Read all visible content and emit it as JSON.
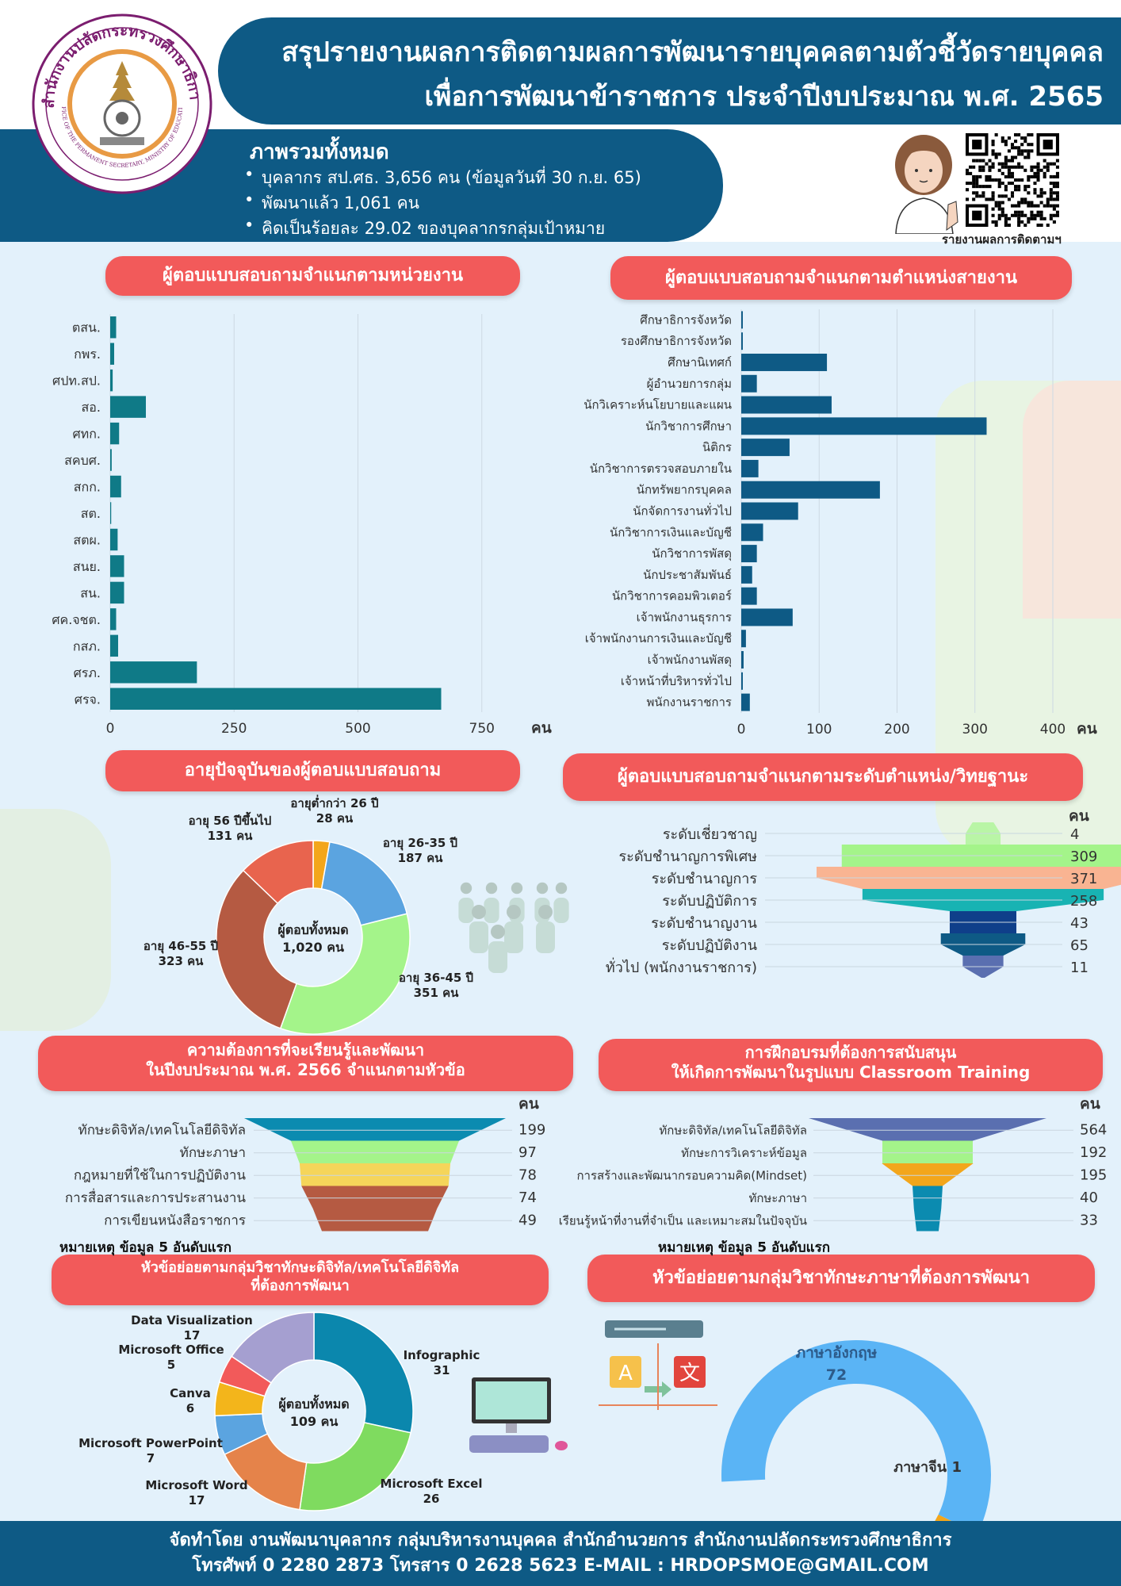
{
  "header": {
    "title_line1": "สรุปรายงานผลการติดตามผลการพัฒนารายบุคคลตามตัวชี้วัดรายบุคคล",
    "title_line2": "เพื่อการพัฒนาข้าราชการ ประจำปีงบประมาณ พ.ศ. 2565",
    "logo_text": "สำนักงานปลัดกระทรวงศึกษาธิการ",
    "logo_text_en": "OFFICE OF THE PERMANENT SECRETARY, MINISTRY OF EDUCATION",
    "qr_caption": "รายงานผลการติดตามฯ"
  },
  "overview": {
    "title": "ภาพรวมทั้งหมด",
    "bullets": [
      "บุคลากร สป.ศธ. 3,656 คน (ข้อมูลวันที่ 30 ก.ย. 65)",
      "พัฒนาแล้ว 1,061 คน",
      "คิดเป็นร้อยละ 29.02 ของบุคลากรกลุ่มเป้าหมาย"
    ]
  },
  "sections": {
    "by_unit": "ผู้ตอบแบบสอบถามจำแนกตามหน่วยงาน",
    "by_position": "ผู้ตอบแบบสอบถามจำแนกตามตำแหน่งสายงาน",
    "by_age": "อายุปัจจุบันของผู้ตอบแบบสอบถาม",
    "by_level": "ผู้ตอบแบบสอบถามจำแนกตามระดับตำแหน่ง/วิทยฐานะ",
    "learning_need_l1": "ความต้องการที่จะเรียนรู้และพัฒนา",
    "learning_need_l2": "ในปีงบประมาณ พ.ศ. 2566 จำแนกตามหัวข้อ",
    "classroom_l1": "การฝึกอบรมที่ต้องการสนับสนุน",
    "classroom_l2": "ให้เกิดการพัฒนาในรูปแบบ Classroom Training",
    "digital_l1": "หัวข้อย่อยตามกลุ่มวิชาทักษะดิจิทัล/เทคโนโลยีดิจิทัล",
    "digital_l2": "ที่ต้องการพัฒนา",
    "language": "หัวข้อย่อยตามกลุ่มวิชาทักษะภาษาที่ต้องการพัฒนา"
  },
  "chart_data": [
    {
      "id": "by_unit",
      "type": "bar",
      "orientation": "horizontal",
      "categories": [
        "ตสน.",
        "กพร.",
        "ศปท.สป.",
        "สอ.",
        "ศทก.",
        "สคบศ.",
        "สกก.",
        "สต.",
        "สตผ.",
        "สนย.",
        "สน.",
        "ศค.จชต.",
        "กสภ.",
        "ศรภ.",
        "ศรจ."
      ],
      "values": [
        12,
        8,
        5,
        72,
        18,
        3,
        22,
        2,
        15,
        28,
        28,
        12,
        16,
        175,
        668
      ],
      "xlim": [
        0,
        800
      ],
      "xticks": [
        0,
        250,
        500,
        750
      ],
      "unit": "คน",
      "color": "#0f7a87"
    },
    {
      "id": "by_position",
      "type": "bar",
      "orientation": "horizontal",
      "categories": [
        "ศึกษาธิการจังหวัด",
        "รองศึกษาธิการจังหวัด",
        "ศึกษานิเทศก์",
        "ผู้อำนวยการกลุ่ม",
        "นักวิเคราะห์นโยบายและแผน",
        "นักวิชาการศึกษา",
        "นิติกร",
        "นักวิชาการตรวจสอบภายใน",
        "นักทรัพยากรบุคคล",
        "นักจัดการงานทั่วไป",
        "นักวิชาการเงินและบัญชี",
        "นักวิชาการพัสดุ",
        "นักประชาสัมพันธ์",
        "นักวิชาการคอมพิวเตอร์",
        "เจ้าพนักงานธุรการ",
        "เจ้าพนักงานการเงินและบัญชี",
        "เจ้าพนักงานพัสดุ",
        "เจ้าหน้าที่บริหารทั่วไป",
        "พนักงานราชการ"
      ],
      "values": [
        2,
        2,
        110,
        20,
        116,
        315,
        62,
        22,
        178,
        73,
        28,
        20,
        14,
        20,
        66,
        6,
        3,
        2,
        11
      ],
      "xlim": [
        0,
        420
      ],
      "xticks": [
        0,
        100,
        200,
        300,
        400
      ],
      "unit": "คน",
      "color": "#0e5a85"
    },
    {
      "id": "by_age",
      "type": "pie",
      "donut": true,
      "center_label": "ผู้ตอบทั้งหมด",
      "center_value": "1,020 คน",
      "slices": [
        {
          "label": "อายุต่ำกว่า 26 ปี",
          "value_text": "28 คน",
          "value": 28,
          "color": "#f3a61b"
        },
        {
          "label": "อายุ 26-35 ปี",
          "value_text": "187 คน",
          "value": 187,
          "color": "#5ba4e0"
        },
        {
          "label": "อายุ 36-45 ปี",
          "value_text": "351 คน",
          "value": 351,
          "color": "#a4f48a"
        },
        {
          "label": "อายุ 46-55 ปี",
          "value_text": "323 คน",
          "value": 323,
          "color": "#b55a42"
        },
        {
          "label": "อายุ 56 ปีขึ้นไป",
          "value_text": "131 คน",
          "value": 131,
          "color": "#e8644e"
        }
      ]
    },
    {
      "id": "by_level",
      "type": "funnel",
      "unit": "คน",
      "categories": [
        "ระดับเชี่ยวชาญ",
        "ระดับชำนาญการพิเศษ",
        "ระดับชำนาญการ",
        "ระดับปฏิบัติการ",
        "ระดับชำนาญงาน",
        "ระดับปฏิบัติงาน",
        "ทั่วไป (พนักงานราชการ)"
      ],
      "values": [
        4,
        309,
        371,
        258,
        43,
        65,
        11
      ],
      "value_labels": [
        "4",
        "309",
        "371",
        "258",
        "43",
        "65",
        "11"
      ],
      "colors": [
        "#b9f5a6",
        "#a4f48a",
        "#f9b492",
        "#18b3b3",
        "#0f3f8a",
        "#0e5a85",
        "#5a6fb0"
      ]
    },
    {
      "id": "learning_need",
      "type": "funnel",
      "unit": "คน",
      "categories": [
        "ทักษะดิจิทัล/เทคโนโลยีดิจิทัล",
        "ทักษะภาษา",
        "กฎหมายที่ใช้ในการปฏิบัติงาน",
        "การสื่อสารและการประสานงาน",
        "การเขียนหนังสือราชการ"
      ],
      "values": [
        199,
        97,
        78,
        74,
        49
      ],
      "value_labels": [
        "199",
        "97",
        "78",
        "74",
        "49"
      ],
      "colors": [
        "#0b8bb0",
        "#a4f48a",
        "#f5d55a",
        "#b55a42",
        "#b55a42"
      ],
      "note": "หมายเหตุ  ข้อมูล 5 อันดับแรก"
    },
    {
      "id": "classroom",
      "type": "funnel",
      "unit": "คน",
      "categories": [
        "ทักษะดิจิทัล/เทคโนโลยีดิจิทัล",
        "ทักษะการวิเคราะห์ข้อมูล",
        "การสร้างและพัฒนากรอบความคิด(Mindset)",
        "ทักษะภาษา",
        "เรียนรู้หน้าที่งานที่จำเป็น และเหมาะสมในปัจจุบัน"
      ],
      "values": [
        564,
        192,
        195,
        40,
        33
      ],
      "value_labels": [
        "564",
        "192",
        "195",
        "40",
        "33"
      ],
      "colors": [
        "#5a6fb0",
        "#a4f48a",
        "#f3a61b",
        "#0b8bb0",
        "#0b8bb0"
      ],
      "note": "หมายเหตุ  ข้อมูล 5 อันดับแรก"
    },
    {
      "id": "digital",
      "type": "pie",
      "donut": true,
      "center_label": "ผู้ตอบทั้งหมด",
      "center_value": "109 คน",
      "slices": [
        {
          "label": "Infographic",
          "value_text": "31",
          "value": 31,
          "color": "#0b87ad"
        },
        {
          "label": "Microsoft Excel",
          "value_text": "26",
          "value": 26,
          "color": "#7fdb5f"
        },
        {
          "label": "Microsoft Word",
          "value_text": "17",
          "value": 17,
          "color": "#e5834a"
        },
        {
          "label": "Microsoft PowerPoint",
          "value_text": "7",
          "value": 7,
          "color": "#5ba4e0"
        },
        {
          "label": "Canva",
          "value_text": "6",
          "value": 6,
          "color": "#f3b51b"
        },
        {
          "label": "Microsoft Office",
          "value_text": "5",
          "value": 5,
          "color": "#f25a5a"
        },
        {
          "label": "Data Visualization",
          "value_text": "17",
          "value": 17,
          "color": "#a59fd0"
        }
      ]
    },
    {
      "id": "language",
      "type": "pie",
      "semi": true,
      "slices": [
        {
          "label": "ภาษาอังกฤษ",
          "value_text": "72",
          "value": 72,
          "color": "#5ab4f5"
        },
        {
          "label": "ภาษาจีน",
          "value_text": "1",
          "value": 1,
          "color": "#f3a61b"
        }
      ]
    }
  ],
  "footer": {
    "line1": "จัดทำโดย งานพัฒนาบุคลากร กลุ่มบริหารงานบุคคล สำนักอำนวยการ  สำนักงานปลัดกระทรวงศึกษาธิการ",
    "line2": "โทรศัพท์ 0 2280 2873 โทรสาร 0 2628 5623 E-MAIL : HRDOPSMOE@GMAIL.COM"
  },
  "colors": {
    "brand": "#0e5a85",
    "pill": "#f25a5a",
    "background": "#e3f1fb"
  }
}
